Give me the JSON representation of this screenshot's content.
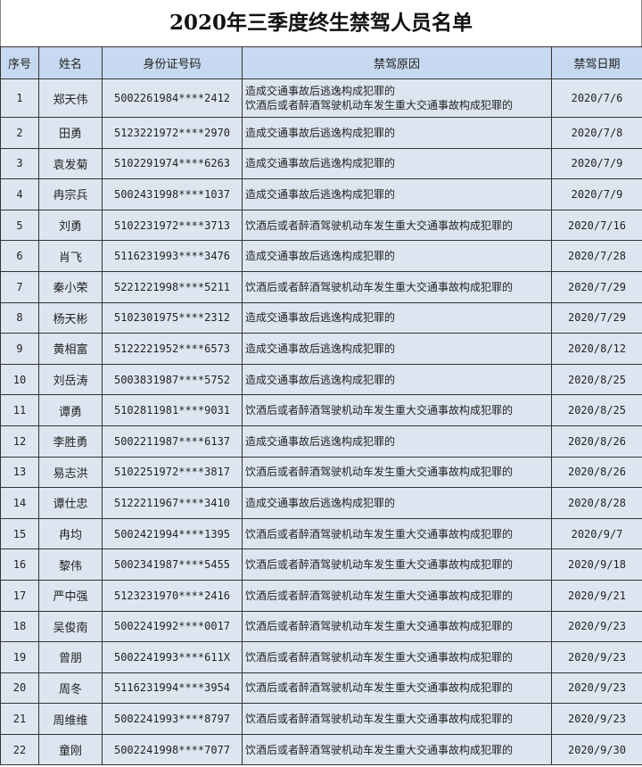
{
  "title": "2020年三季度终生禁驾人员名单",
  "headers": [
    "序号",
    "姓名",
    "身份证号码",
    "禁驾原因",
    "禁驾日期"
  ],
  "colors": {
    "header_bg": "#c6d9f0",
    "cell_bg": "#dde6f0",
    "border": "#333333"
  },
  "rows": [
    {
      "no": "1",
      "name": "郑天伟",
      "id": "5002261984****2412",
      "reasons": [
        "造成交通事故后逃逸构成犯罪的",
        "饮酒后或者醉酒驾驶机动车发生重大交通事故构成犯罪的"
      ],
      "date": "2020/7/6"
    },
    {
      "no": "2",
      "name": "田勇",
      "id": "5123221972****2970",
      "reasons": [
        "造成交通事故后逃逸构成犯罪的"
      ],
      "date": "2020/7/8"
    },
    {
      "no": "3",
      "name": "袁发菊",
      "id": "5102291974****6263",
      "reasons": [
        "造成交通事故后逃逸构成犯罪的"
      ],
      "date": "2020/7/9"
    },
    {
      "no": "4",
      "name": "冉宗兵",
      "id": "5002431998****1037",
      "reasons": [
        "造成交通事故后逃逸构成犯罪的"
      ],
      "date": "2020/7/9"
    },
    {
      "no": "5",
      "name": "刘勇",
      "id": "5102231972****3713",
      "reasons": [
        "饮酒后或者醉酒驾驶机动车发生重大交通事故构成犯罪的"
      ],
      "date": "2020/7/16"
    },
    {
      "no": "6",
      "name": "肖飞",
      "id": "5116231993****3476",
      "reasons": [
        "造成交通事故后逃逸构成犯罪的"
      ],
      "date": "2020/7/28"
    },
    {
      "no": "7",
      "name": "秦小荣",
      "id": "5221221998****5211",
      "reasons": [
        "饮酒后或者醉酒驾驶机动车发生重大交通事故构成犯罪的"
      ],
      "date": "2020/7/29"
    },
    {
      "no": "8",
      "name": "杨天彬",
      "id": "5102301975****2312",
      "reasons": [
        "造成交通事故后逃逸构成犯罪的"
      ],
      "date": "2020/7/29"
    },
    {
      "no": "9",
      "name": "黄相富",
      "id": "5122221952****6573",
      "reasons": [
        "造成交通事故后逃逸构成犯罪的"
      ],
      "date": "2020/8/12"
    },
    {
      "no": "10",
      "name": "刘岳涛",
      "id": "5003831987****5752",
      "reasons": [
        "造成交通事故后逃逸构成犯罪的"
      ],
      "date": "2020/8/25"
    },
    {
      "no": "11",
      "name": "谭勇",
      "id": "5102811981****9031",
      "reasons": [
        "饮酒后或者醉酒驾驶机动车发生重大交通事故构成犯罪的"
      ],
      "date": "2020/8/25"
    },
    {
      "no": "12",
      "name": "李胜勇",
      "id": "5002211987****6137",
      "reasons": [
        "造成交通事故后逃逸构成犯罪的"
      ],
      "date": "2020/8/26"
    },
    {
      "no": "13",
      "name": "易志洪",
      "id": "5102251972****3817",
      "reasons": [
        "饮酒后或者醉酒驾驶机动车发生重大交通事故构成犯罪的"
      ],
      "date": "2020/8/26"
    },
    {
      "no": "14",
      "name": "谭仕忠",
      "id": "5122211967****3410",
      "reasons": [
        "造成交通事故后逃逸构成犯罪的"
      ],
      "date": "2020/8/28"
    },
    {
      "no": "15",
      "name": "冉均",
      "id": "5002421994****1395",
      "reasons": [
        "饮酒后或者醉酒驾驶机动车发生重大交通事故构成犯罪的"
      ],
      "date": "2020/9/7"
    },
    {
      "no": "16",
      "name": "黎伟",
      "id": "5002341987****5455",
      "reasons": [
        "饮酒后或者醉酒驾驶机动车发生重大交通事故构成犯罪的"
      ],
      "date": "2020/9/18"
    },
    {
      "no": "17",
      "name": "严中强",
      "id": "5123231970****2416",
      "reasons": [
        "饮酒后或者醉酒驾驶机动车发生重大交通事故构成犯罪的"
      ],
      "date": "2020/9/21"
    },
    {
      "no": "18",
      "name": "吴俊南",
      "id": "5002241992****0017",
      "reasons": [
        "饮酒后或者醉酒驾驶机动车发生重大交通事故构成犯罪的"
      ],
      "date": "2020/9/23"
    },
    {
      "no": "19",
      "name": "曾朋",
      "id": "5002241993****611X",
      "reasons": [
        "饮酒后或者醉酒驾驶机动车发生重大交通事故构成犯罪的"
      ],
      "date": "2020/9/23"
    },
    {
      "no": "20",
      "name": "周冬",
      "id": "5116231994****3954",
      "reasons": [
        "饮酒后或者醉酒驾驶机动车发生重大交通事故构成犯罪的"
      ],
      "date": "2020/9/23"
    },
    {
      "no": "21",
      "name": "周维维",
      "id": "5002241993****8797",
      "reasons": [
        "饮酒后或者醉酒驾驶机动车发生重大交通事故构成犯罪的"
      ],
      "date": "2020/9/23"
    },
    {
      "no": "22",
      "name": "童刚",
      "id": "5002241998****7077",
      "reasons": [
        "饮酒后或者醉酒驾驶机动车发生重大交通事故构成犯罪的"
      ],
      "date": "2020/9/30"
    }
  ]
}
